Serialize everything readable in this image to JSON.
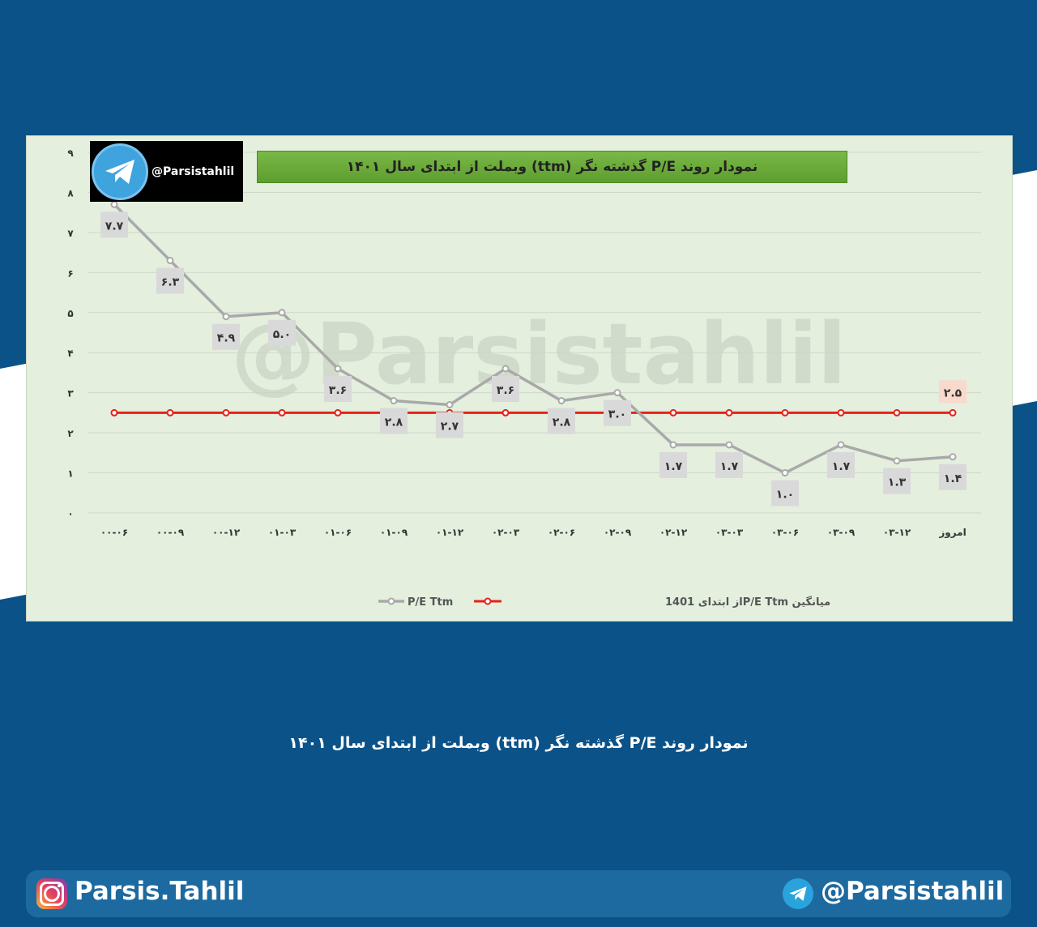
{
  "colors": {
    "background": "#0b5288",
    "card": "#e4efde",
    "pe_line": "#a9a9a9",
    "avg_line": "#e8211a",
    "title_bar": "#6aad3a",
    "label_box": "#d9d9d9",
    "avg_label_box": "#f8d9cc"
  },
  "logo": {
    "handle": "@Parsistahlil",
    "icon": "telegram-icon"
  },
  "watermark": "@Parsistahlil",
  "caption": "نمودار روند P/E گذشته نگر (ttm)  وبملت از ابتدای سال ۱۴۰۱",
  "footer": {
    "instagram": "Parsis.Tahlil",
    "telegram": "@Parsistahlil",
    "instagram_icon": "instagram-icon",
    "telegram_icon": "telegram-icon"
  },
  "chart_data": {
    "type": "line",
    "title": "نمودار روند P/E گذشته نگر (ttm)  وبملت از ابتدای سال ۱۴۰۱",
    "categories": [
      "۰۰-۰۶",
      "۰۰-۰۹",
      "۰۰-۱۲",
      "۰۱-۰۳",
      "۰۱-۰۶",
      "۰۱-۰۹",
      "۰۱-۱۲",
      "۰۲-۰۳",
      "۰۲-۰۶",
      "۰۲-۰۹",
      "۰۲-۱۲",
      "۰۳-۰۳",
      "۰۳-۰۶",
      "۰۳-۰۹",
      "۰۳-۱۲",
      "امروز"
    ],
    "yticks": [
      "۰",
      "۱",
      "۲",
      "۳",
      "۴",
      "۵",
      "۶",
      "۷",
      "۸",
      "۹"
    ],
    "ylim": [
      0,
      9
    ],
    "grid": true,
    "legend_position": "bottom",
    "series": [
      {
        "name": "P/E Ttm",
        "values": [
          7.7,
          6.3,
          4.9,
          5.0,
          3.6,
          2.8,
          2.7,
          3.6,
          2.8,
          3.0,
          1.7,
          1.7,
          1.0,
          1.7,
          1.3,
          1.4
        ],
        "labels": [
          "۷.۷",
          "۶.۳",
          "۴.۹",
          "۵.۰",
          "۳.۶",
          "۲.۸",
          "۲.۷",
          "۳.۶",
          "۲.۸",
          "۳.۰",
          "۱.۷",
          "۱.۷",
          "۱.۰",
          "۱.۷",
          "۱.۳",
          "۱.۴"
        ]
      },
      {
        "name": "میانگین  P/E Ttmاز ابتدای 1401",
        "values": [
          2.5,
          2.5,
          2.5,
          2.5,
          2.5,
          2.5,
          2.5,
          2.5,
          2.5,
          2.5,
          2.5,
          2.5,
          2.5,
          2.5,
          2.5,
          2.5
        ],
        "end_label": "۲.۵"
      }
    ]
  }
}
